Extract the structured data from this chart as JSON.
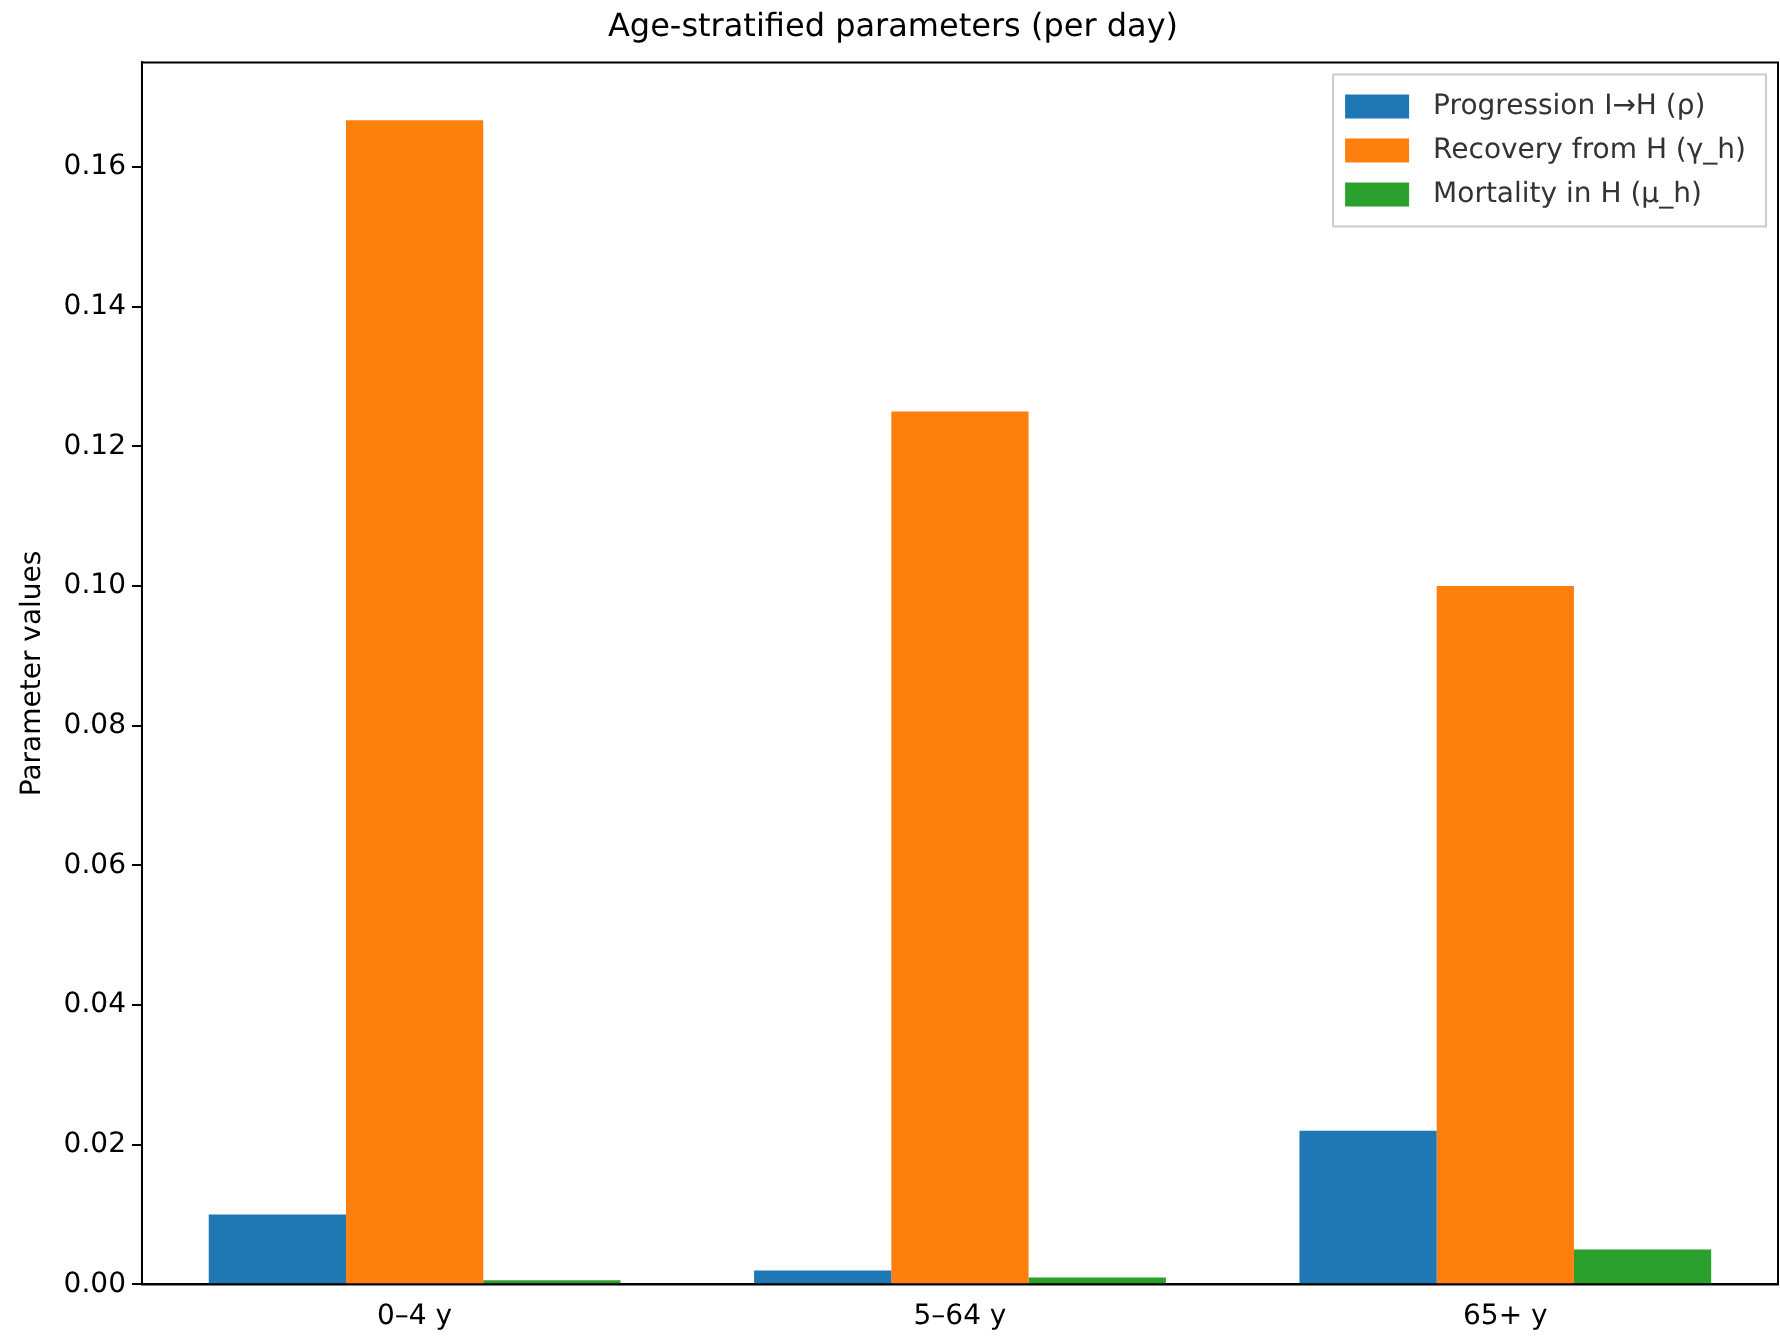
{
  "chart_data": {
    "type": "bar",
    "title": "Age-stratified parameters (per day)",
    "ylabel": "Parameter values",
    "categories": [
      "0–4 y",
      "5–64 y",
      "65+ y"
    ],
    "series": [
      {
        "name": "Progression I→H (ρ)",
        "color": "#1f77b4",
        "values": [
          0.01,
          0.002,
          0.022
        ]
      },
      {
        "name": "Recovery from H (γ_h)",
        "color": "#ff7f0e",
        "values": [
          0.1667,
          0.125,
          0.1
        ]
      },
      {
        "name": "Mortality in H (μ_h)",
        "color": "#2ca02c",
        "values": [
          0.0006,
          0.001,
          0.005
        ]
      }
    ],
    "ylim": [
      0,
      0.175
    ],
    "yticks": [
      {
        "value": 0,
        "label": "0.00"
      },
      {
        "value": 0.02,
        "label": "0.02"
      },
      {
        "value": 0.04,
        "label": "0.04"
      },
      {
        "value": 0.06,
        "label": "0.06"
      },
      {
        "value": 0.08,
        "label": "0.08"
      },
      {
        "value": 0.1,
        "label": "0.10"
      },
      {
        "value": 0.12,
        "label": "0.12"
      },
      {
        "value": 0.14,
        "label": "0.14"
      },
      {
        "value": 0.16,
        "label": "0.16"
      }
    ],
    "grid": false,
    "legend": "top right"
  }
}
